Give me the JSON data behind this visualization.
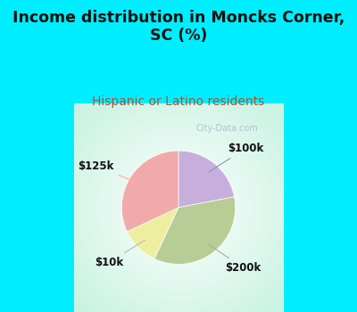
{
  "title": "Income distribution in Moncks Corner,\nSC (%)",
  "subtitle": "Hispanic or Latino residents",
  "title_color": "#111111",
  "subtitle_color": "#b05030",
  "background_cyan": "#00eeff",
  "slices": [
    {
      "label": "$100k",
      "value": 22,
      "color": "#c8aedd"
    },
    {
      "label": "$200k",
      "value": 35,
      "color": "#b8cc96"
    },
    {
      "label": "$10k",
      "value": 11,
      "color": "#eeeea0"
    },
    {
      "label": "$125k",
      "value": 32,
      "color": "#f0aaaa"
    }
  ],
  "start_angle": 90,
  "figsize": [
    4.0,
    3.5
  ],
  "dpi": 100,
  "label_fontsize": 8.5,
  "title_fontsize": 12.5,
  "subtitle_fontsize": 10,
  "watermark": "City-Data.com",
  "watermark_color": "#aabbcc",
  "arrow_colors": {
    "$100k": "#7799bb",
    "$200k": "#aaaaaa",
    "$10k": "#bbbbaa",
    "$125k": "#ffaaaa"
  }
}
